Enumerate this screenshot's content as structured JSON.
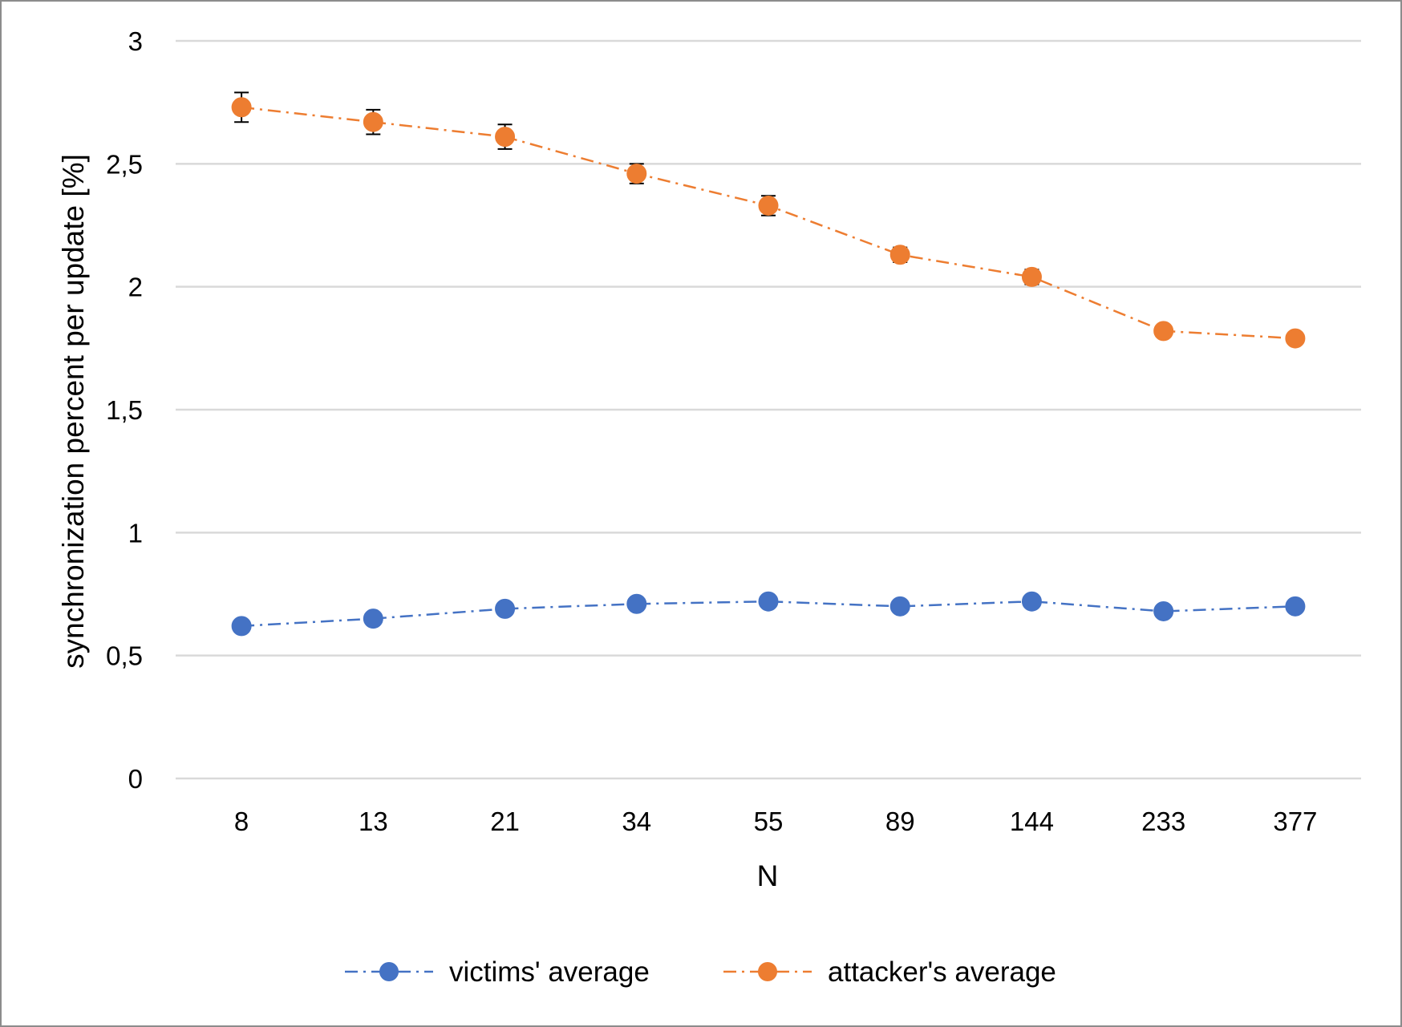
{
  "chart_data": {
    "type": "line",
    "title": "",
    "xlabel": "N",
    "ylabel": "synchronization percent per update [%]",
    "categories": [
      "8",
      "13",
      "21",
      "34",
      "55",
      "89",
      "144",
      "233",
      "377"
    ],
    "ylim": [
      0,
      3
    ],
    "yticks": [
      "0",
      "0,5",
      "1",
      "1,5",
      "2",
      "2,5",
      "3"
    ],
    "ytick_values": [
      0,
      0.5,
      1,
      1.5,
      2,
      2.5,
      3
    ],
    "grid": "horizontal",
    "legend_position": "bottom",
    "series": [
      {
        "name": "victims' average",
        "color": "#4472C4",
        "line_style": "dash-dot",
        "marker": "circle",
        "values": [
          0.62,
          0.65,
          0.69,
          0.71,
          0.72,
          0.7,
          0.72,
          0.68,
          0.7
        ]
      },
      {
        "name": "attacker's average",
        "color": "#ED7D31",
        "line_style": "dash-dot",
        "marker": "circle",
        "values": [
          2.73,
          2.67,
          2.61,
          2.46,
          2.33,
          2.13,
          2.04,
          1.82,
          1.79
        ],
        "error": [
          0.06,
          0.05,
          0.05,
          0.04,
          0.04,
          0.03,
          0.03,
          0.02,
          0.02
        ]
      }
    ]
  }
}
